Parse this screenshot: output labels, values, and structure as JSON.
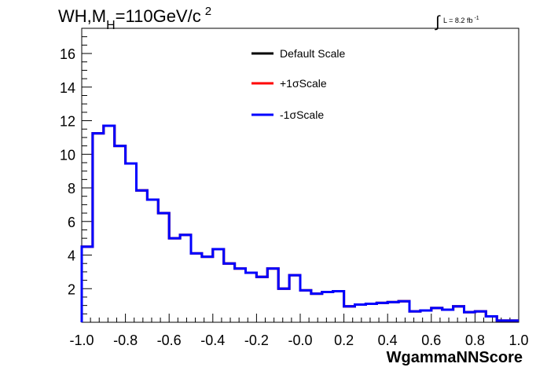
{
  "chart_data": {
    "type": "line",
    "title_main": "WH,M",
    "title_sub": "H",
    "title_rest": "=110GeV/c",
    "title_sup": "2",
    "lumi_int": "∫",
    "lumi_text": "L = 8.2 fb",
    "lumi_sup": "-1",
    "xlabel": "WgammaNNScore",
    "xlim": [
      -1.0,
      1.0
    ],
    "ylim": [
      0,
      17.5
    ],
    "x_ticks": [
      "-1.0",
      "-0.8",
      "-0.6",
      "-0.4",
      "-0.2",
      "-0.0",
      "0.2",
      "0.4",
      "0.6",
      "0.8",
      "1.0"
    ],
    "y_ticks": [
      "2",
      "4",
      "6",
      "8",
      "10",
      "12",
      "14",
      "16"
    ],
    "bin_edges_start": -1.0,
    "bin_width": 0.05,
    "series": [
      {
        "name": "Default Scale",
        "color": "#000000",
        "values": [
          4.5,
          11.25,
          11.7,
          10.5,
          9.45,
          7.85,
          7.3,
          6.5,
          5.0,
          5.2,
          4.1,
          3.9,
          4.35,
          3.5,
          3.2,
          2.95,
          2.7,
          3.2,
          2.0,
          2.8,
          1.9,
          1.7,
          1.8,
          1.85,
          0.95,
          1.05,
          1.1,
          1.15,
          1.2,
          1.25,
          0.65,
          0.7,
          0.85,
          0.75,
          0.95,
          0.6,
          0.65,
          0.35,
          0.1,
          0.1
        ]
      },
      {
        "name": "+1σScale",
        "color": "#ff0000",
        "values": [
          4.5,
          11.25,
          11.7,
          10.5,
          9.45,
          7.85,
          7.3,
          6.5,
          5.0,
          5.2,
          4.1,
          3.9,
          4.35,
          3.5,
          3.2,
          2.95,
          2.7,
          3.2,
          2.0,
          2.8,
          1.9,
          1.7,
          1.8,
          1.85,
          0.95,
          1.05,
          1.1,
          1.15,
          1.2,
          1.25,
          0.65,
          0.7,
          0.85,
          0.75,
          0.95,
          0.6,
          0.65,
          0.35,
          0.1,
          0.1
        ]
      },
      {
        "name": "-1σScale",
        "color": "#0000ff",
        "values": [
          4.5,
          11.25,
          11.7,
          10.5,
          9.45,
          7.85,
          7.3,
          6.5,
          5.0,
          5.2,
          4.1,
          3.9,
          4.35,
          3.5,
          3.2,
          2.95,
          2.7,
          3.2,
          2.0,
          2.8,
          1.9,
          1.7,
          1.8,
          1.85,
          0.95,
          1.05,
          1.1,
          1.15,
          1.2,
          1.25,
          0.65,
          0.7,
          0.85,
          0.75,
          0.95,
          0.6,
          0.65,
          0.35,
          0.1,
          0.1
        ]
      }
    ],
    "legend_position": "top-center",
    "grid": false
  }
}
